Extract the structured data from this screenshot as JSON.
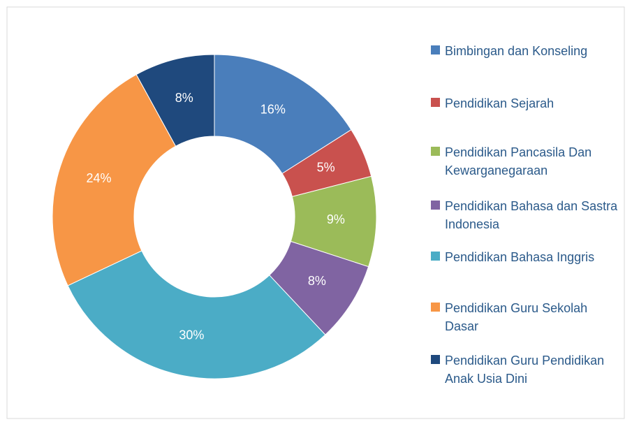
{
  "chart_data": {
    "type": "donut",
    "categories": [
      "Bimbingan dan Konseling",
      "Pendidikan Sejarah",
      "Pendidikan Pancasila Dan Kewarganegaraan",
      "Pendidikan Bahasa dan Sastra Indonesia",
      "Pendidikan Bahasa Inggris",
      "Pendidikan Guru Sekolah Dasar",
      "Pendidikan Guru Pendidikan Anak Usia Dini"
    ],
    "values": [
      16,
      5,
      9,
      8,
      30,
      24,
      8
    ],
    "value_labels": [
      "16%",
      "5%",
      "9%",
      "8%",
      "30%",
      "24%",
      "8%"
    ],
    "colors": [
      "#4a7ebb",
      "#c9514e",
      "#9bbb59",
      "#8064a2",
      "#4bacc6",
      "#f79646",
      "#1f497d"
    ],
    "legend": "right"
  }
}
